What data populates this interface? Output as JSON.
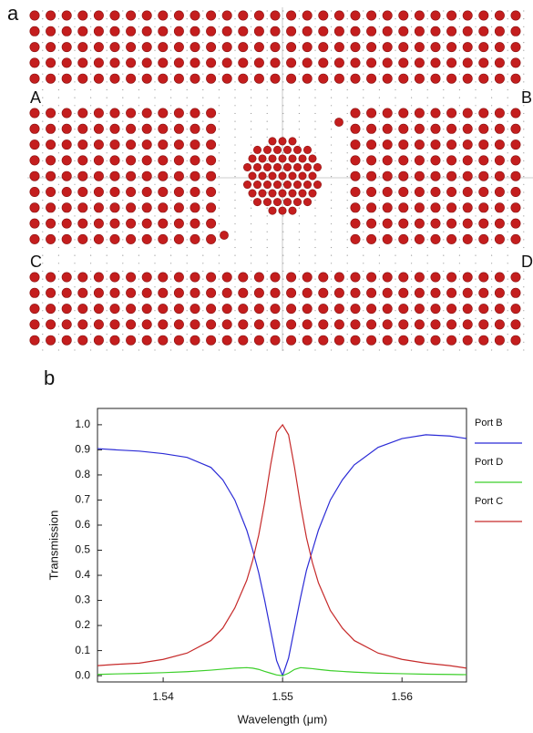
{
  "panel_a": {
    "label": "a",
    "ports": [
      "A",
      "B",
      "C",
      "D"
    ]
  },
  "chart_data": {
    "type": "line",
    "panel_label": "b",
    "x_label": "Wavelength (μm)",
    "y_label": "Transmission",
    "x": [
      1.5345,
      1.536,
      1.538,
      1.54,
      1.542,
      1.544,
      1.545,
      1.546,
      1.547,
      1.5475,
      1.548,
      1.5485,
      1.549,
      1.5495,
      1.55,
      1.5505,
      1.551,
      1.5515,
      1.552,
      1.5525,
      1.553,
      1.554,
      1.555,
      1.556,
      1.558,
      1.56,
      1.562,
      1.564,
      1.5654
    ],
    "series": [
      {
        "name": "Port B",
        "color": "#2b2bd6",
        "values": [
          0.905,
          0.9,
          0.895,
          0.885,
          0.87,
          0.83,
          0.78,
          0.7,
          0.58,
          0.5,
          0.41,
          0.3,
          0.18,
          0.06,
          0.0,
          0.07,
          0.19,
          0.31,
          0.42,
          0.5,
          0.58,
          0.7,
          0.78,
          0.84,
          0.91,
          0.945,
          0.96,
          0.955,
          0.945
        ]
      },
      {
        "name": "Port D",
        "color": "#3ccf2a",
        "values": [
          0.005,
          0.007,
          0.009,
          0.012,
          0.016,
          0.022,
          0.026,
          0.03,
          0.032,
          0.03,
          0.025,
          0.017,
          0.01,
          0.003,
          0.0,
          0.01,
          0.025,
          0.032,
          0.03,
          0.028,
          0.025,
          0.02,
          0.017,
          0.014,
          0.01,
          0.008,
          0.006,
          0.005,
          0.004
        ]
      },
      {
        "name": "Port C",
        "color": "#c62a2a",
        "values": [
          0.04,
          0.045,
          0.05,
          0.065,
          0.09,
          0.14,
          0.19,
          0.27,
          0.38,
          0.46,
          0.56,
          0.69,
          0.84,
          0.97,
          1.0,
          0.96,
          0.83,
          0.68,
          0.55,
          0.45,
          0.37,
          0.26,
          0.19,
          0.14,
          0.09,
          0.065,
          0.05,
          0.04,
          0.03
        ]
      }
    ],
    "xlim": [
      1.5345,
      1.5654
    ],
    "ylim": [
      -0.025,
      1.065
    ],
    "xticks": [
      1.54,
      1.55,
      1.56
    ],
    "yticks": [
      {
        "value": 0,
        "label": "0.0"
      },
      0.1,
      0.2,
      0.3,
      0.4,
      0.5,
      0.6,
      0.7,
      0.8,
      0.9,
      {
        "value": 1,
        "label": "1.0"
      }
    ],
    "grid": false,
    "legend": "outside-right"
  }
}
